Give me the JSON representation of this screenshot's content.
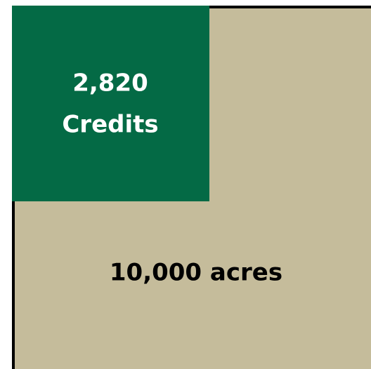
{
  "inner_box": {
    "value": "2,820",
    "label": "Credits"
  },
  "outer_box": {
    "label": "10,000 acres"
  }
}
